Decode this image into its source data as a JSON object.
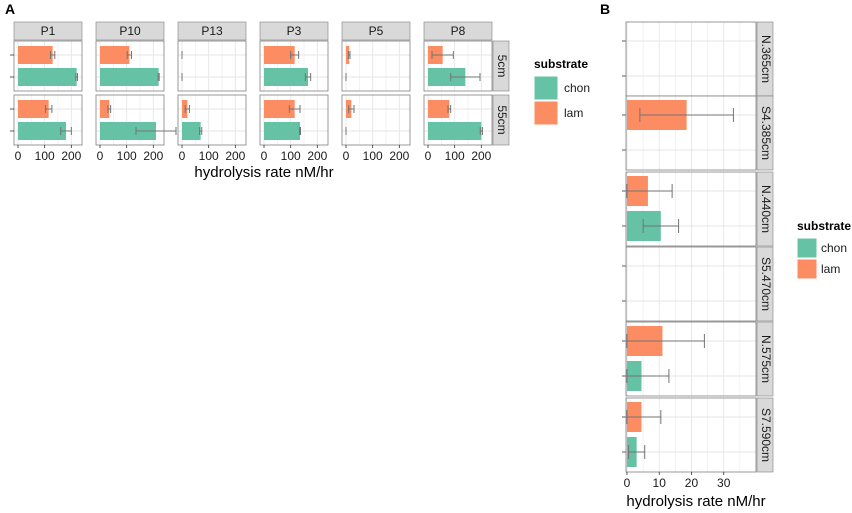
{
  "colors": {
    "chon": "#66c2a5",
    "lam": "#fc8d62",
    "strip": "#d9d9d9",
    "grid": "#e6e6e6",
    "panel_border": "#7f7f7f",
    "error": "#737373"
  },
  "chart_data": [
    {
      "panel_label": "A",
      "type": "bar",
      "orientation": "horizontal",
      "facet_columns": [
        "P1",
        "P10",
        "P13",
        "P3",
        "P5",
        "P8"
      ],
      "facet_rows": [
        "5cm",
        "55cm"
      ],
      "xlabel": "hydrolysis rate nM/hr",
      "xlim": [
        -15,
        240
      ],
      "x_ticks": [
        0,
        100,
        200
      ],
      "x_tick_labels": [
        "0",
        "100",
        "200"
      ],
      "legend": {
        "title": "substrate",
        "entries": [
          "chon",
          "lam"
        ],
        "placement": "right"
      },
      "series": [
        {
          "name": "chon",
          "values": {
            "P1": {
              "5cm": 220,
              "55cm": 180
            },
            "P10": {
              "5cm": 220,
              "55cm": 210
            },
            "P13": {
              "5cm": 0,
              "55cm": 70
            },
            "P3": {
              "5cm": 165,
              "55cm": 135
            },
            "P5": {
              "5cm": 0,
              "55cm": 0
            },
            "P8": {
              "5cm": 140,
              "55cm": 200
            }
          },
          "error": {
            "P1": {
              "5cm": 3,
              "55cm": 20
            },
            "P10": {
              "5cm": 2,
              "55cm": 75
            },
            "P13": {
              "5cm": 0,
              "55cm": 4
            },
            "P3": {
              "5cm": 10,
              "55cm": 2
            },
            "P5": {
              "5cm": 0,
              "55cm": 0
            },
            "P8": {
              "5cm": 55,
              "55cm": 4
            }
          }
        },
        {
          "name": "lam",
          "values": {
            "P1": {
              "5cm": 130,
              "55cm": 115
            },
            "P10": {
              "5cm": 110,
              "55cm": 35
            },
            "P13": {
              "5cm": 0,
              "55cm": 20
            },
            "P3": {
              "5cm": 115,
              "55cm": 115
            },
            "P5": {
              "5cm": 12,
              "55cm": 20
            },
            "P8": {
              "5cm": 55,
              "55cm": 80
            }
          },
          "error": {
            "P1": {
              "5cm": 8,
              "55cm": 12
            },
            "P10": {
              "5cm": 8,
              "55cm": 5
            },
            "P13": {
              "5cm": 0,
              "55cm": 8
            },
            "P3": {
              "5cm": 15,
              "55cm": 20
            },
            "P5": {
              "5cm": 3,
              "55cm": 10
            },
            "P8": {
              "5cm": 40,
              "55cm": 5
            }
          }
        }
      ]
    },
    {
      "panel_label": "B",
      "type": "bar",
      "orientation": "horizontal",
      "facet_rows": [
        "N.365cm",
        "S4.385cm",
        "N.440cm",
        "S5.470cm",
        "N.575cm",
        "S7.590cm"
      ],
      "xlabel": "hydrolysis rate nM/hr",
      "xlim": [
        -0.3,
        40
      ],
      "x_ticks": [
        0,
        10,
        20,
        30
      ],
      "x_tick_labels": [
        "0",
        "10",
        "20",
        "30"
      ],
      "legend": {
        "title": "substrate",
        "entries": [
          "chon",
          "lam"
        ],
        "placement": "right"
      },
      "series": [
        {
          "name": "chon",
          "values": {
            "N.365cm": null,
            "S4.385cm": null,
            "N.440cm": 10.5,
            "S5.470cm": null,
            "N.575cm": 4.5,
            "S7.590cm": 3
          },
          "error": {
            "N.365cm": null,
            "S4.385cm": null,
            "N.440cm": 5.5,
            "S5.470cm": null,
            "N.575cm": 8.5,
            "S7.590cm": 2.5
          }
        },
        {
          "name": "lam",
          "values": {
            "N.365cm": null,
            "S4.385cm": 18.5,
            "N.440cm": 6.5,
            "S5.470cm": null,
            "N.575cm": 11,
            "S7.590cm": 4.5
          },
          "error": {
            "N.365cm": null,
            "S4.385cm": 14.5,
            "N.440cm": 7.5,
            "S5.470cm": null,
            "N.575cm": 13,
            "S7.590cm": 6
          }
        }
      ]
    }
  ]
}
